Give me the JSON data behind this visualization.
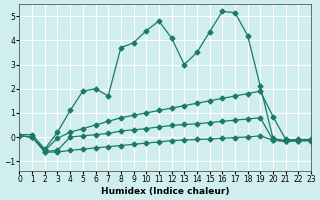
{
  "xlabel": "Humidex (Indice chaleur)",
  "ylabel": "",
  "background_color": "#d0eeee",
  "grid_color": "#ffffff",
  "line_color": "#1a7a6a",
  "xlim": [
    0,
    23
  ],
  "ylim": [
    -1.4,
    5.5
  ],
  "yticks": [
    -1,
    0,
    1,
    2,
    3,
    4,
    5
  ],
  "xticks": [
    0,
    1,
    2,
    3,
    4,
    5,
    6,
    7,
    8,
    9,
    10,
    11,
    12,
    13,
    14,
    15,
    16,
    17,
    18,
    19,
    20,
    21,
    22,
    23
  ],
  "line1_x": [
    0,
    1,
    2,
    3,
    4,
    5,
    6,
    7,
    8,
    9,
    10,
    11,
    12,
    13,
    14,
    15,
    16,
    17,
    18,
    19,
    20,
    21,
    22,
    23
  ],
  "line1_y": [
    0.1,
    0.1,
    -0.5,
    0.2,
    1.1,
    1.9,
    2.0,
    1.7,
    3.7,
    3.9,
    4.4,
    4.8,
    4.1,
    3.0,
    3.5,
    4.35,
    5.2,
    5.15,
    4.2,
    2.1,
    -0.05,
    -0.15,
    -0.1,
    -0.1
  ],
  "line2_x": [
    0,
    1,
    2,
    3,
    4,
    5,
    6,
    7,
    8,
    9,
    10,
    11,
    12,
    13,
    14,
    15,
    16,
    17,
    18,
    19,
    20,
    21,
    22,
    23
  ],
  "line2_y": [
    0.05,
    0.0,
    -0.55,
    -0.05,
    0.2,
    0.35,
    0.5,
    0.65,
    0.8,
    0.9,
    1.0,
    1.1,
    1.2,
    1.3,
    1.4,
    1.5,
    1.6,
    1.7,
    1.8,
    1.9,
    0.85,
    -0.1,
    -0.12,
    -0.12
  ],
  "line3_x": [
    0,
    1,
    2,
    3,
    4,
    5,
    6,
    7,
    8,
    9,
    10,
    11,
    12,
    13,
    14,
    15,
    16,
    17,
    18,
    19,
    20,
    21,
    22,
    23
  ],
  "line3_y": [
    0.05,
    0.0,
    -0.6,
    -0.55,
    0.0,
    0.05,
    0.1,
    0.15,
    0.25,
    0.3,
    0.35,
    0.42,
    0.48,
    0.52,
    0.55,
    0.6,
    0.65,
    0.7,
    0.75,
    0.8,
    -0.12,
    -0.17,
    -0.15,
    -0.15
  ],
  "line4_x": [
    0,
    1,
    2,
    3,
    4,
    5,
    6,
    7,
    8,
    9,
    10,
    11,
    12,
    13,
    14,
    15,
    16,
    17,
    18,
    19,
    20,
    21,
    22,
    23
  ],
  "line4_y": [
    0.05,
    0.0,
    -0.62,
    -0.62,
    -0.55,
    -0.5,
    -0.45,
    -0.4,
    -0.35,
    -0.3,
    -0.25,
    -0.2,
    -0.15,
    -0.12,
    -0.1,
    -0.08,
    -0.05,
    -0.02,
    0.0,
    0.05,
    -0.13,
    -0.18,
    -0.15,
    -0.15
  ]
}
